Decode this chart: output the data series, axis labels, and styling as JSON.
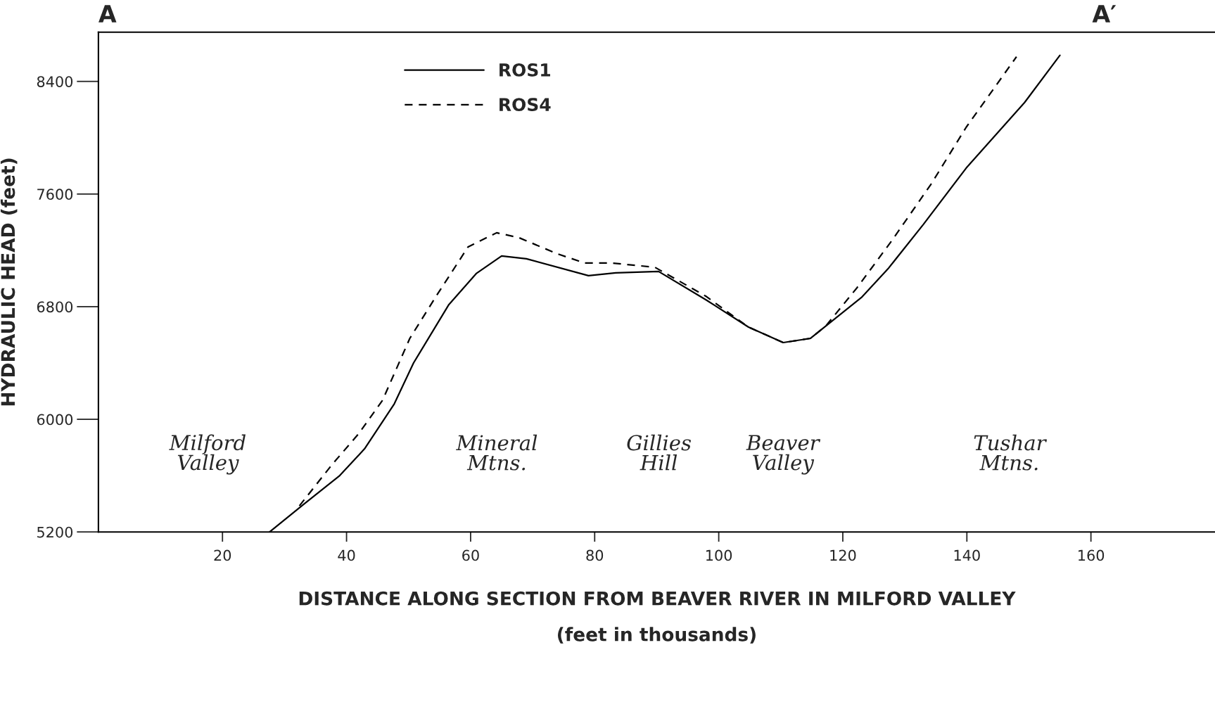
{
  "chart_data": {
    "type": "line",
    "xlabel": "DISTANCE ALONG SECTION FROM BEAVER RIVER IN MILFORD VALLEY\n\n(feet in thousands)",
    "ylabel": "HYDRAULIC HEAD (feet)",
    "xlim": [
      0,
      180
    ],
    "ylim": [
      5200,
      8750
    ],
    "xticks": [
      20,
      40,
      60,
      80,
      100,
      120,
      140,
      160
    ],
    "yticks": [
      5200,
      6000,
      6800,
      7600,
      8400
    ],
    "grid": false,
    "legend": "top",
    "marker": "none",
    "series": [
      {
        "name": "ROS1",
        "color": "#000000",
        "line_style": "solid",
        "x": [
          27.6,
          33.2,
          38.9,
          42.9,
          47.7,
          50.8,
          56.5,
          60.9,
          65,
          69,
          79,
          83.4,
          90.3,
          97.9,
          104.8,
          110.4,
          114.8,
          123,
          127.4,
          133,
          139.9,
          149.3,
          155
        ],
        "values": [
          5200,
          5400,
          5600,
          5790,
          6110,
          6400,
          6815,
          7035,
          7160,
          7140,
          7020,
          7040,
          7050,
          6850,
          6655,
          6545,
          6575,
          6865,
          7075,
          7385,
          7785,
          8250,
          8585
        ]
      },
      {
        "name": "ROS4",
        "color": "#000000",
        "line_style": "dashed",
        "x": [
          32.4,
          37.6,
          42,
          45.8,
          50.2,
          54.6,
          59.6,
          64.2,
          67.8,
          74,
          78.4,
          82.8,
          89.7,
          97.9,
          104.8,
          110.4,
          114.8,
          117.3,
          122.3,
          128,
          134.3,
          139.9,
          148
        ],
        "values": [
          5385,
          5675,
          5900,
          6135,
          6575,
          6885,
          7225,
          7325,
          7290,
          7175,
          7110,
          7110,
          7080,
          6875,
          6655,
          6545,
          6575,
          6665,
          6935,
          7275,
          7675,
          8075,
          8575
        ]
      }
    ],
    "annotations": [
      "A",
      "A′",
      "Milford\nValley",
      "Mineral\nMtns.",
      "Gillies\nHill",
      "Beaver\nValley",
      "Tushar\nMtns."
    ]
  }
}
